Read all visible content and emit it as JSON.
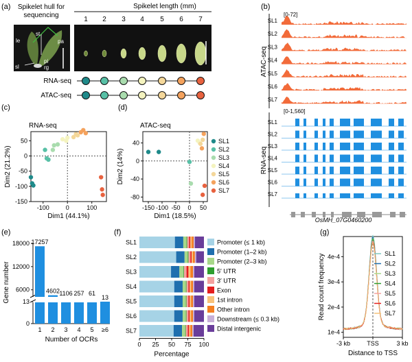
{
  "panel_labels": {
    "a": "(a)",
    "b": "(b)",
    "c": "(c)",
    "d": "(d)",
    "e": "(e)",
    "f": "(f)",
    "g": "(g)"
  },
  "panel_a": {
    "hull_title_l1": "Spikelet hull for",
    "hull_title_l2": "sequencing",
    "length_title": "Spikelet length (mm)",
    "lengths": [
      "1",
      "2",
      "3",
      "4",
      "5",
      "6",
      "7"
    ],
    "parts": [
      "le",
      "st",
      "pa",
      "pi",
      "sl",
      "rg"
    ],
    "rows": [
      {
        "label": "RNA-seq"
      },
      {
        "label": "ATAC-seq"
      }
    ],
    "dot_colors": [
      "#1f8a8a",
      "#58c0a6",
      "#a9dcae",
      "#f4f3bf",
      "#f4d79a",
      "#f4a25d",
      "#e8623f"
    ]
  },
  "panel_b": {
    "atac_range": "[0-72]",
    "rna_range": "[0-1,560]",
    "atac_label": "ATAC-seq",
    "rna_label": "RNA-seq",
    "tracks": [
      "SL1",
      "SL2",
      "SL3",
      "SL4",
      "SL5",
      "SL6",
      "SL7"
    ],
    "gene": "OsMH_07G0460200",
    "atac_color": "#f26b3a",
    "rna_color": "#1f8fe0"
  },
  "chart_data": [
    {
      "type": "scatter",
      "panel": "c",
      "title": "RNA-seq",
      "xlabel": "Dim1 (44.1%)",
      "ylabel": "Dim2 (21.2%)",
      "xlim": [
        -150,
        160
      ],
      "ylim": [
        -150,
        80
      ],
      "xticks": [
        "-100",
        "0",
        "100"
      ],
      "yticks": [
        "50",
        "0",
        "-50",
        "-100",
        "-150"
      ],
      "series": [
        {
          "name": "SL1",
          "points": [
            [
              -150,
              -70
            ],
            [
              -145,
              -90
            ],
            [
              -140,
              -97
            ]
          ]
        },
        {
          "name": "SL2",
          "points": [
            [
              -92,
              20
            ],
            [
              -85,
              -8
            ],
            [
              -78,
              -12
            ]
          ]
        },
        {
          "name": "SL3",
          "points": [
            [
              -60,
              20
            ],
            [
              -55,
              35
            ],
            [
              -40,
              38
            ]
          ]
        },
        {
          "name": "SL4",
          "points": [
            [
              -20,
              55
            ],
            [
              -5,
              50
            ],
            [
              0,
              60
            ]
          ]
        },
        {
          "name": "SL5",
          "points": [
            [
              25,
              62
            ],
            [
              35,
              72
            ],
            [
              42,
              68
            ]
          ]
        },
        {
          "name": "SL6",
          "points": [
            [
              55,
              78
            ],
            [
              65,
              85
            ],
            [
              75,
              75
            ]
          ]
        },
        {
          "name": "SL7",
          "points": [
            [
              138,
              -70
            ],
            [
              142,
              -110
            ],
            [
              145,
              -128
            ]
          ]
        }
      ]
    },
    {
      "type": "scatter",
      "panel": "d",
      "title": "ATAC-seq",
      "xlabel": "Dim1 (18.5%)",
      "ylabel": "Dim2 (14%)",
      "xlim": [
        -170,
        65
      ],
      "ylim": [
        -90,
        65
      ],
      "xticks": [
        "-150",
        "-100",
        "-50",
        "0",
        "50"
      ],
      "yticks": [
        "40",
        "0",
        "-40",
        "-80"
      ],
      "series": [
        {
          "name": "SL1",
          "points": [
            [
              -150,
              20
            ],
            [
              -112,
              20
            ]
          ]
        },
        {
          "name": "SL2",
          "points": [
            [
              0,
              -2
            ]
          ]
        },
        {
          "name": "SL3",
          "points": [
            [
              5,
              -50
            ]
          ]
        },
        {
          "name": "SL4",
          "points": [
            [
              30,
              45
            ],
            [
              37,
              40
            ]
          ]
        },
        {
          "name": "SL5",
          "points": [
            [
              40,
              38
            ],
            [
              48,
              47
            ]
          ]
        },
        {
          "name": "SL6",
          "points": [
            [
              52,
              60
            ],
            [
              45,
              28
            ]
          ]
        },
        {
          "name": "SL7",
          "points": [
            [
              48,
              -75
            ],
            [
              55,
              -55
            ]
          ]
        }
      ],
      "legend": [
        "SL1",
        "SL2",
        "SL3",
        "SL4",
        "SL5",
        "SL6",
        "SL7"
      ]
    },
    {
      "type": "bar",
      "panel": "e",
      "xlabel": "Number of OCRs",
      "ylabel": "Gene number",
      "categories": [
        "1",
        "2",
        "3",
        "4",
        "5",
        "≥6"
      ],
      "values": [
        17257,
        4602,
        1106,
        257,
        61,
        13
      ],
      "labels": [
        "17257",
        "4602",
        "1106",
        "257",
        "61",
        "13"
      ],
      "yticks": [
        "18000",
        "12000",
        "6000",
        "13",
        "0"
      ]
    },
    {
      "type": "bar",
      "panel": "f",
      "stacked": true,
      "xlabel": "Percentage",
      "categories": [
        "SL1",
        "SL2",
        "SL3",
        "SL4",
        "SL5",
        "SL6",
        "SL7"
      ],
      "xticks": [
        "0",
        "25",
        "50",
        "75",
        "100"
      ],
      "series": [
        {
          "name": "Promoter (≤ 1 kb)",
          "color": "#a6d3e6",
          "values": [
            55,
            57,
            49,
            54,
            54,
            54,
            53
          ]
        },
        {
          "name": "Promoter (1–2 kb)",
          "color": "#1f6fae",
          "values": [
            13,
            13,
            13,
            13,
            13,
            13,
            13
          ]
        },
        {
          "name": "Promoter (2–3 kb)",
          "color": "#a8d88a",
          "values": [
            5,
            5,
            6,
            5,
            5,
            5,
            5
          ]
        },
        {
          "name": "5′ UTR",
          "color": "#2e9e2e",
          "values": [
            1,
            1,
            1,
            1,
            1,
            1,
            1
          ]
        },
        {
          "name": "3′ UTR",
          "color": "#f4a2a0",
          "values": [
            3,
            3,
            4,
            3,
            3,
            3,
            3
          ]
        },
        {
          "name": "Exon",
          "color": "#e41e1e",
          "values": [
            2,
            2,
            3,
            2,
            2,
            2,
            2
          ]
        },
        {
          "name": "1st intron",
          "color": "#f9c27a",
          "values": [
            2,
            2,
            3,
            2,
            2,
            2,
            2
          ]
        },
        {
          "name": "Other intron",
          "color": "#f47f20",
          "values": [
            3,
            3,
            4,
            3,
            3,
            3,
            3
          ]
        },
        {
          "name": "Downstream (≤ 0.3 kb)",
          "color": "#c8b0d8",
          "values": [
            2,
            2,
            2,
            2,
            2,
            2,
            2
          ]
        },
        {
          "name": "Distal intergenic",
          "color": "#6a3d9a",
          "values": [
            14,
            12,
            15,
            15,
            15,
            15,
            16
          ]
        }
      ]
    },
    {
      "type": "line",
      "panel": "g",
      "xlabel": "Distance to TSS",
      "ylabel": "Read count frequency",
      "xticks": [
        "-3 kb",
        "TSS",
        "3 kb"
      ],
      "yticks": [
        "4e-4",
        "3e-4",
        "2e-4",
        "1e-4"
      ],
      "xlim": [
        -3000,
        3000
      ],
      "ylim": [
        8e-05,
        0.00048
      ],
      "series": [
        {
          "name": "SL1",
          "color": "#7fc8c0",
          "peak": 0.00046
        },
        {
          "name": "SL2",
          "color": "#1f6fae",
          "peak": 0.000455
        },
        {
          "name": "SL3",
          "color": "#a8d88a",
          "peak": 0.00045
        },
        {
          "name": "SL4",
          "color": "#2e9e2e",
          "peak": 0.000445
        },
        {
          "name": "SL5",
          "color": "#f4a2a0",
          "peak": 0.00044
        },
        {
          "name": "SL6",
          "color": "#e41e1e",
          "peak": 0.000435
        },
        {
          "name": "SL7",
          "color": "#f4c27a",
          "peak": 0.00043
        }
      ]
    }
  ]
}
